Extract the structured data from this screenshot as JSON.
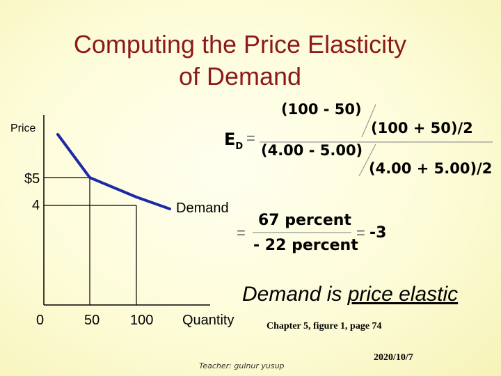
{
  "slide": {
    "title_line1": "Computing the Price Elasticity",
    "title_line2": "of Demand",
    "title_color": "#8b1a1a",
    "background_color": "#fdfcd8"
  },
  "graph": {
    "y_axis_label": "Price",
    "x_axis_label": "Quantity",
    "price_ticks": [
      "$5",
      "4"
    ],
    "quantity_ticks": [
      "0",
      "50",
      "100"
    ],
    "curve_label": "Demand",
    "curve_color": "#1c2aa6"
  },
  "formula": {
    "ed_symbol": "E",
    "ed_subscript": "D",
    "equals": "=",
    "num_top": "(100 - 50)",
    "num_bottom": "(100 + 50)/2",
    "den_top": "(4.00 - 5.00)",
    "den_bottom": "(4.00 + 5.00)/2",
    "result_num": "67 percent",
    "result_den": "- 22 percent",
    "result_equals": "=",
    "result_value": "-3"
  },
  "conclusion": {
    "prefix": "Demand is ",
    "emphasis": "price elastic"
  },
  "footer": {
    "source": "Chapter 5, figure 1, page 74",
    "teacher": "Teacher: gulnur  yusup",
    "date": "2020/10/7"
  }
}
